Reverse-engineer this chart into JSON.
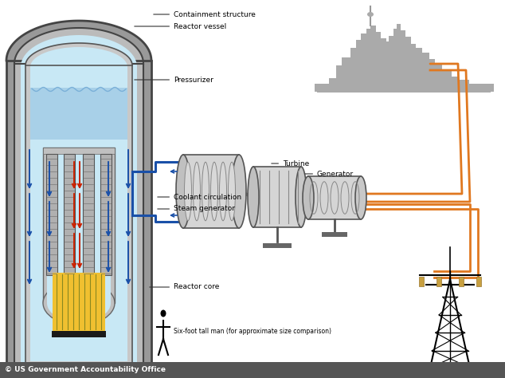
{
  "bg_color": "#ffffff",
  "light_blue_fill": "#c8e8f5",
  "gray_outer": "#999999",
  "gray_mid": "#b0b0b0",
  "gray_inner": "#d0d0d0",
  "blue_arrow": "#1a50a8",
  "red_arrow": "#cc2200",
  "orange_line": "#e07820",
  "yellow_core": "#f0c030",
  "black_core_base": "#1a1a1a",
  "water_blue": "#a8d0e8",
  "title_label": "© US Government Accountability Office",
  "labels": {
    "containment": "Containment structure",
    "reactor_vessel": "Reactor vessel",
    "pressurizer": "Pressurizer",
    "coolant": "Coolant circulation",
    "steam_gen": "Steam generator",
    "reactor_core": "Reactor core",
    "turbine": "Turbine",
    "generator": "Generator",
    "six_foot": "Six-foot tall man (for approximate size comparison)"
  },
  "font_size_label": 6.5,
  "font_size_footer": 6.5
}
